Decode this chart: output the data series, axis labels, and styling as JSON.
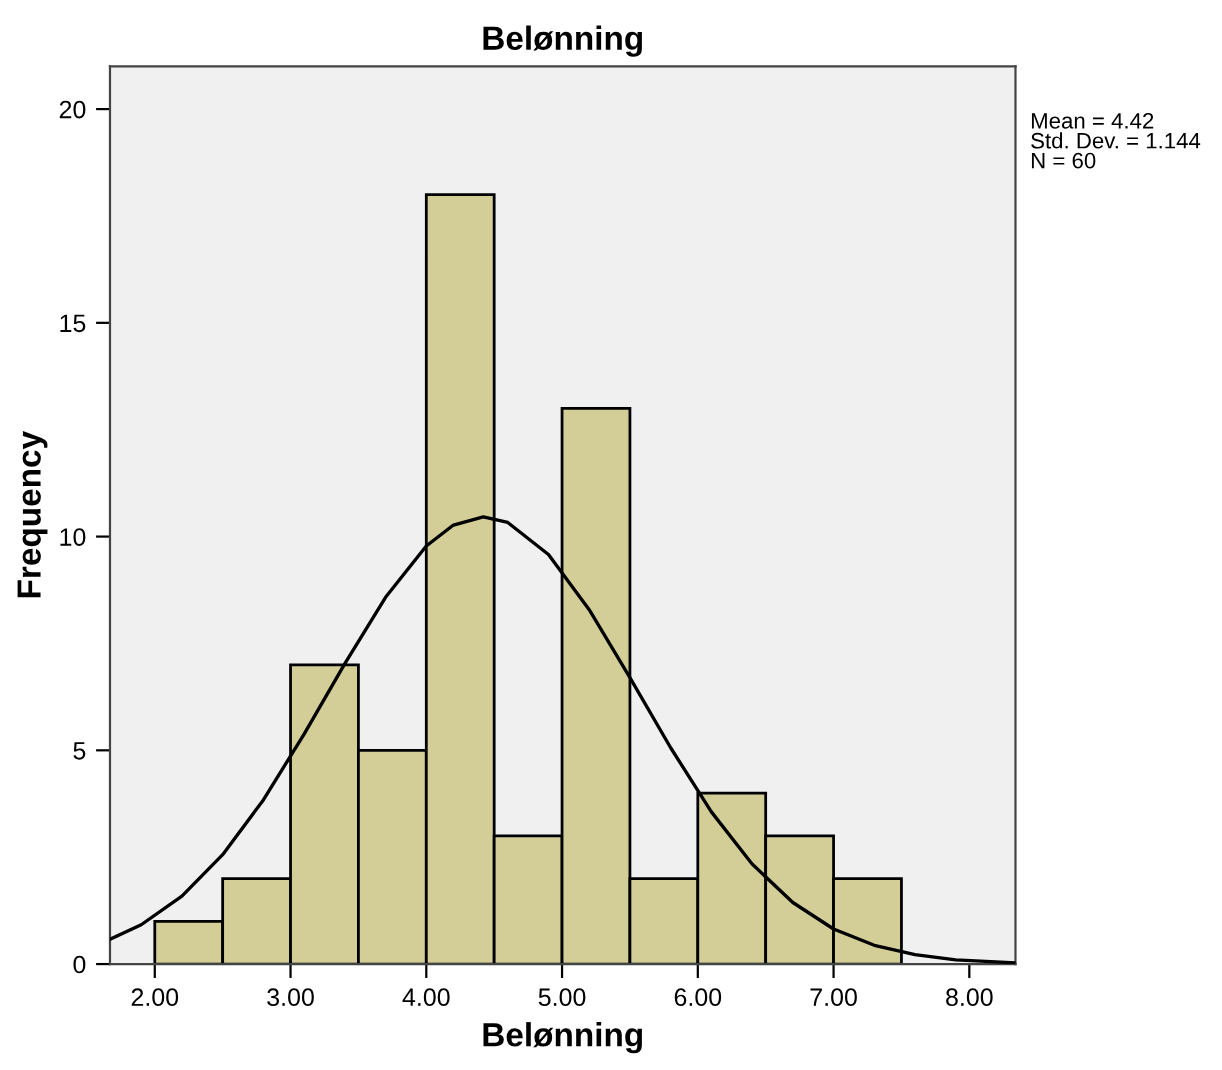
{
  "chart_data": {
    "type": "histogram",
    "title": "Belønning",
    "xlabel": "Belønning",
    "ylabel": "Frequency",
    "annotations": [
      "Mean = 4.42\nStd. Dev. = 1.144\nN = 60"
    ],
    "series": [
      {
        "color": "#d3ce97",
        "bins": [
          2.0,
          2.5,
          3.0,
          3.5,
          4.0,
          4.5,
          5.0,
          5.5,
          6.0,
          6.5,
          7.0,
          7.5
        ],
        "values": [
          1,
          2,
          7,
          5,
          18,
          3,
          13,
          2,
          4,
          3,
          2
        ]
      },
      {
        "type": "line",
        "color": "#000000",
        "x": [
          1.67,
          1.9,
          2.2,
          2.5,
          2.8,
          3.1,
          3.4,
          3.7,
          4.0,
          4.2,
          4.42,
          4.6,
          4.9,
          5.2,
          5.5,
          5.8,
          6.1,
          6.4,
          6.7,
          7.0,
          7.3,
          7.6,
          7.9,
          8.34
        ],
        "values": [
          0.58,
          0.92,
          1.59,
          2.56,
          3.84,
          5.38,
          7.03,
          8.58,
          9.78,
          10.27,
          10.46,
          10.33,
          9.58,
          8.29,
          6.7,
          5.06,
          3.56,
          2.34,
          1.44,
          0.82,
          0.44,
          0.22,
          0.1,
          0.03
        ]
      }
    ],
    "xlim": [
      1.67,
      8.34
    ],
    "ylim": [
      0,
      21
    ],
    "xticks": [
      {
        "value": 2,
        "label": "2.00"
      },
      {
        "value": 3,
        "label": "3.00"
      },
      {
        "value": 4,
        "label": "4.00"
      },
      {
        "value": 5,
        "label": "5.00"
      },
      {
        "value": 6,
        "label": "6.00"
      },
      {
        "value": 7,
        "label": "7.00"
      },
      {
        "value": 8,
        "label": "8.00"
      }
    ],
    "yticks": [
      0,
      5,
      10,
      15,
      20
    ],
    "grid": false,
    "legend": false
  }
}
